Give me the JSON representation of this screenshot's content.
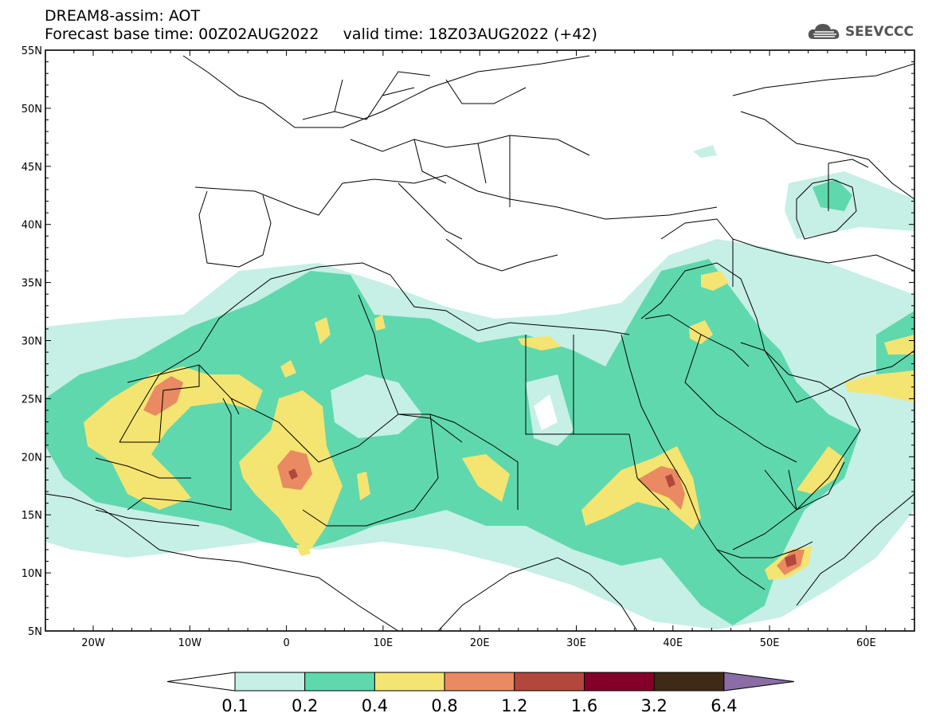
{
  "header": {
    "line1": "DREAM8-assim: AOT",
    "line2": "Forecast base time: 00Z02AUG2022     valid time: 18Z03AUG2022 (+42)"
  },
  "logo": {
    "text": "SEEVCCC",
    "icon": "cloud-icon"
  },
  "map": {
    "lat_labels": [
      "55N",
      "50N",
      "45N",
      "40N",
      "35N",
      "30N",
      "25N",
      "20N",
      "15N",
      "10N",
      "5N"
    ],
    "lon_labels": [
      "20W",
      "10W",
      "0",
      "10E",
      "20E",
      "30E",
      "40E",
      "50E",
      "60E"
    ]
  },
  "colorbar": {
    "colors": [
      "#ffffff",
      "#c6efe6",
      "#5fd8ad",
      "#f4e472",
      "#e98a62",
      "#b2483c",
      "#82002a",
      "#3f2a17",
      "#8b6ca6"
    ],
    "labels": [
      "0.1",
      "0.2",
      "0.4",
      "0.8",
      "1.2",
      "1.6",
      "3.2",
      "6.4"
    ]
  }
}
